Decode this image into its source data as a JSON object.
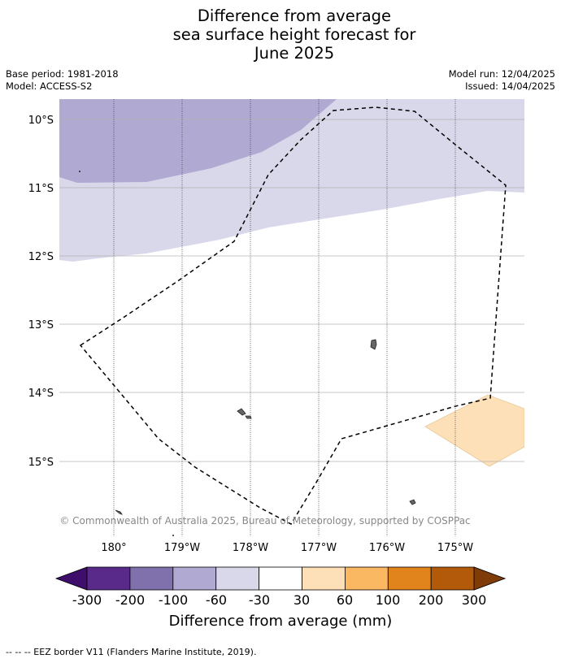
{
  "title": {
    "line1": "Difference from average",
    "line2": "sea surface height forecast for",
    "line3": "June 2025"
  },
  "meta": {
    "base_period": "Base period: 1981-2018",
    "model": "Model: ACCESS-S2",
    "model_run": "Model run: 12/04/2025",
    "issued": "Issued: 14/04/2025"
  },
  "map": {
    "lat_labels": [
      "10°S",
      "11°S",
      "12°S",
      "13°S",
      "14°S",
      "15°S"
    ],
    "lon_labels": [
      "180°",
      "179°W",
      "178°W",
      "177°W",
      "176°W",
      "175°W"
    ],
    "copyright": "© Commonwealth of Australia 2025, Bureau of Meteorology, supported by COSPPac"
  },
  "colorbar": {
    "ticks": [
      "-300",
      "-200",
      "-100",
      "-60",
      "-30",
      "30",
      "60",
      "100",
      "200",
      "300"
    ],
    "colors": [
      "#3f0d6b",
      "#5a2a8a",
      "#8070ac",
      "#b0a9d2",
      "#d8d8ea",
      "#ffffff",
      "#fde0b8",
      "#fab863",
      "#e0841b",
      "#b3590a",
      "#7f3b08"
    ],
    "label": "Difference from average (mm)"
  },
  "footer": {
    "eez_note": "--  --  -- EEZ border V11 (Flanders Marine Institute, 2019)."
  }
}
